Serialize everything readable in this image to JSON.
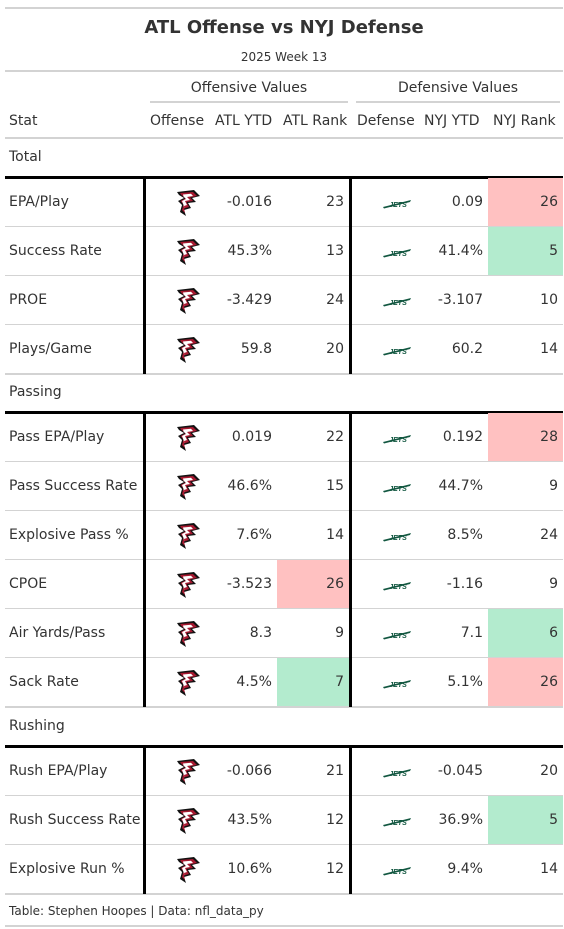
{
  "title": "ATL Offense vs NYJ Defense",
  "subtitle": "2025 Week 13",
  "spanners": {
    "offense": "Offensive Values",
    "defense": "Defensive Values"
  },
  "columns": {
    "stat": "Stat",
    "offense": "Offense",
    "atl_ytd": "ATL YTD",
    "atl_rank": "ATL Rank",
    "defense": "Defense",
    "nyj_ytd": "NYJ YTD",
    "nyj_rank": "NYJ Rank"
  },
  "colors": {
    "bad": "#ffc1c1",
    "good": "#b3ebce",
    "falcons_red": "#a71930",
    "jets_green": "#125740"
  },
  "icons": {
    "offense": "falcons-logo-icon",
    "defense": "jets-logo-icon"
  },
  "groups": [
    {
      "name": "Total",
      "rows": [
        {
          "stat": "EPA/Play",
          "atl_ytd": "-0.016",
          "atl_rank": "23",
          "atl_hl": "",
          "nyj_ytd": "0.09",
          "nyj_rank": "26",
          "nyj_hl": "bad"
        },
        {
          "stat": "Success Rate",
          "atl_ytd": "45.3%",
          "atl_rank": "13",
          "atl_hl": "",
          "nyj_ytd": "41.4%",
          "nyj_rank": "5",
          "nyj_hl": "good"
        },
        {
          "stat": "PROE",
          "atl_ytd": "-3.429",
          "atl_rank": "24",
          "atl_hl": "",
          "nyj_ytd": "-3.107",
          "nyj_rank": "10",
          "nyj_hl": ""
        },
        {
          "stat": "Plays/Game",
          "atl_ytd": "59.8",
          "atl_rank": "20",
          "atl_hl": "",
          "nyj_ytd": "60.2",
          "nyj_rank": "14",
          "nyj_hl": ""
        }
      ]
    },
    {
      "name": "Passing",
      "rows": [
        {
          "stat": "Pass EPA/Play",
          "atl_ytd": "0.019",
          "atl_rank": "22",
          "atl_hl": "",
          "nyj_ytd": "0.192",
          "nyj_rank": "28",
          "nyj_hl": "bad"
        },
        {
          "stat": "Pass Success Rate",
          "atl_ytd": "46.6%",
          "atl_rank": "15",
          "atl_hl": "",
          "nyj_ytd": "44.7%",
          "nyj_rank": "9",
          "nyj_hl": ""
        },
        {
          "stat": "Explosive Pass %",
          "atl_ytd": "7.6%",
          "atl_rank": "14",
          "atl_hl": "",
          "nyj_ytd": "8.5%",
          "nyj_rank": "24",
          "nyj_hl": ""
        },
        {
          "stat": "CPOE",
          "atl_ytd": "-3.523",
          "atl_rank": "26",
          "atl_hl": "bad",
          "nyj_ytd": "-1.16",
          "nyj_rank": "9",
          "nyj_hl": ""
        },
        {
          "stat": "Air Yards/Pass",
          "atl_ytd": "8.3",
          "atl_rank": "9",
          "atl_hl": "",
          "nyj_ytd": "7.1",
          "nyj_rank": "6",
          "nyj_hl": "good"
        },
        {
          "stat": "Sack Rate",
          "atl_ytd": "4.5%",
          "atl_rank": "7",
          "atl_hl": "good",
          "nyj_ytd": "5.1%",
          "nyj_rank": "26",
          "nyj_hl": "bad"
        }
      ]
    },
    {
      "name": "Rushing",
      "rows": [
        {
          "stat": "Rush EPA/Play",
          "atl_ytd": "-0.066",
          "atl_rank": "21",
          "atl_hl": "",
          "nyj_ytd": "-0.045",
          "nyj_rank": "20",
          "nyj_hl": ""
        },
        {
          "stat": "Rush Success Rate",
          "atl_ytd": "43.5%",
          "atl_rank": "12",
          "atl_hl": "",
          "nyj_ytd": "36.9%",
          "nyj_rank": "5",
          "nyj_hl": "good"
        },
        {
          "stat": "Explosive Run %",
          "atl_ytd": "10.6%",
          "atl_rank": "12",
          "atl_hl": "",
          "nyj_ytd": "9.4%",
          "nyj_rank": "14",
          "nyj_hl": ""
        }
      ]
    }
  ],
  "footer": "Table: Stephen Hoopes | Data: nfl_data_py"
}
